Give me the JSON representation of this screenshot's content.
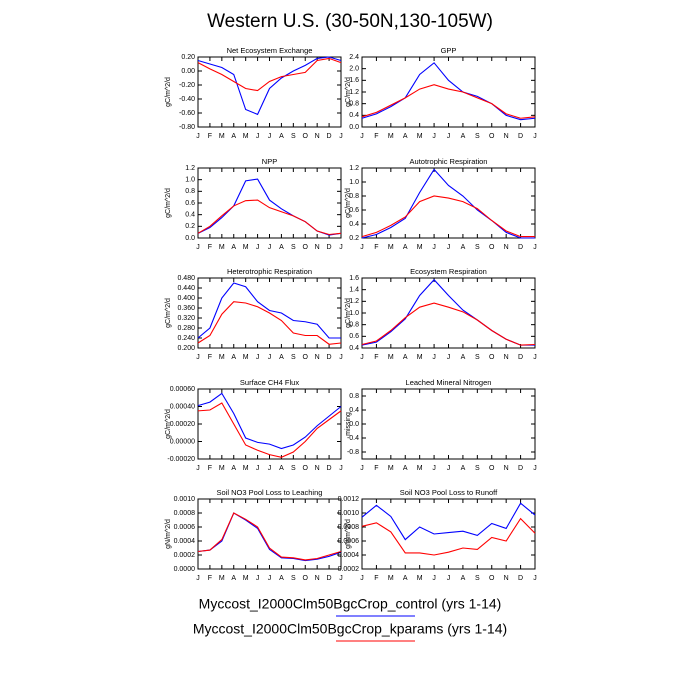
{
  "title": "Western U.S. (30-50N,130-105W)",
  "chart_data": [
    {
      "type": "line",
      "title": "Net Ecosystem Exchange",
      "ylabel": "gC/m^2/d",
      "categories": [
        "J",
        "F",
        "M",
        "A",
        "M",
        "J",
        "J",
        "A",
        "S",
        "O",
        "N",
        "D",
        "J"
      ],
      "ylim": [
        -0.8,
        0.2
      ],
      "yticks": [
        {
          "value": -0.8,
          "label": "-0.80"
        },
        {
          "value": -0.6,
          "label": "-0.60"
        },
        {
          "value": -0.4,
          "label": "-0.40"
        },
        {
          "value": -0.2,
          "label": "-0.20"
        },
        {
          "value": 0,
          "label": "0.00"
        },
        {
          "value": 0.2,
          "label": "0.20"
        }
      ],
      "series": [
        {
          "name": "Myccost_I2000Clm50BgcCrop_control (yrs 1-14)",
          "color": "#0000ff",
          "values": [
            0.15,
            0.1,
            0.05,
            -0.05,
            -0.55,
            -0.62,
            -0.25,
            -0.1,
            0.0,
            0.08,
            0.18,
            0.2,
            0.15
          ]
        },
        {
          "name": "Myccost_I2000Clm50BgcCrop_kparams (yrs 1-14)",
          "color": "#ff0000",
          "values": [
            0.12,
            0.03,
            -0.05,
            -0.15,
            -0.25,
            -0.28,
            -0.15,
            -0.08,
            -0.05,
            -0.02,
            0.15,
            0.18,
            0.12
          ]
        }
      ]
    },
    {
      "type": "line",
      "title": "GPP",
      "ylabel": "gC/m^2/d",
      "categories": [
        "J",
        "F",
        "M",
        "A",
        "M",
        "J",
        "J",
        "A",
        "S",
        "O",
        "N",
        "D",
        "J"
      ],
      "ylim": [
        0,
        2.4
      ],
      "yticks": [
        {
          "value": 0,
          "label": "0.0"
        },
        0.4,
        0.8,
        1.2,
        1.6,
        {
          "value": 2,
          "label": "2.0"
        },
        2.4
      ],
      "series": [
        {
          "name": "Myccost_I2000Clm50BgcCrop_control (yrs 1-14)",
          "color": "#0000ff",
          "values": [
            0.3,
            0.45,
            0.7,
            1.0,
            1.8,
            2.2,
            1.6,
            1.2,
            1.05,
            0.8,
            0.4,
            0.25,
            0.3
          ]
        },
        {
          "name": "Myccost_I2000Clm50BgcCrop_kparams (yrs 1-14)",
          "color": "#ff0000",
          "values": [
            0.35,
            0.5,
            0.75,
            1.0,
            1.3,
            1.45,
            1.3,
            1.2,
            1.0,
            0.8,
            0.45,
            0.3,
            0.35
          ]
        }
      ]
    },
    {
      "type": "line",
      "title": "NPP",
      "ylabel": "gC/m^2/d",
      "categories": [
        "J",
        "F",
        "M",
        "A",
        "M",
        "J",
        "J",
        "A",
        "S",
        "O",
        "N",
        "D",
        "J"
      ],
      "ylim": [
        0,
        1.2
      ],
      "yticks": [
        {
          "value": 0,
          "label": "0.0"
        },
        0.2,
        0.4,
        0.6,
        0.8,
        {
          "value": 1,
          "label": "1.0"
        },
        1.2
      ],
      "series": [
        {
          "name": "Myccost_I2000Clm50BgcCrop_control (yrs 1-14)",
          "color": "#0000ff",
          "values": [
            0.08,
            0.18,
            0.35,
            0.55,
            0.98,
            1.01,
            0.65,
            0.5,
            0.38,
            0.28,
            0.12,
            0.05,
            0.08
          ]
        },
        {
          "name": "Myccost_I2000Clm50BgcCrop_kparams (yrs 1-14)",
          "color": "#ff0000",
          "values": [
            0.08,
            0.2,
            0.38,
            0.55,
            0.64,
            0.65,
            0.52,
            0.45,
            0.38,
            0.28,
            0.12,
            0.06,
            0.08
          ]
        }
      ]
    },
    {
      "type": "line",
      "title": "Autotrophic Respiration",
      "ylabel": "gC/m^2/d",
      "categories": [
        "J",
        "F",
        "M",
        "A",
        "M",
        "J",
        "J",
        "A",
        "S",
        "O",
        "N",
        "D",
        "J"
      ],
      "ylim": [
        0.2,
        1.2
      ],
      "yticks": [
        0.2,
        0.4,
        0.6,
        0.8,
        {
          "value": 1,
          "label": "1.0"
        },
        1.2
      ],
      "series": [
        {
          "name": "Myccost_I2000Clm50BgcCrop_control (yrs 1-14)",
          "color": "#0000ff",
          "values": [
            0.2,
            0.25,
            0.35,
            0.48,
            0.85,
            1.18,
            0.95,
            0.8,
            0.6,
            0.45,
            0.28,
            0.2,
            0.2
          ]
        },
        {
          "name": "Myccost_I2000Clm50BgcCrop_kparams (yrs 1-14)",
          "color": "#ff0000",
          "values": [
            0.22,
            0.28,
            0.38,
            0.5,
            0.72,
            0.8,
            0.77,
            0.72,
            0.62,
            0.45,
            0.3,
            0.22,
            0.22
          ]
        }
      ]
    },
    {
      "type": "line",
      "title": "Heterotrophic Respiration",
      "ylabel": "gC/m^2/d",
      "categories": [
        "J",
        "F",
        "M",
        "A",
        "M",
        "J",
        "J",
        "A",
        "S",
        "O",
        "N",
        "D",
        "J"
      ],
      "ylim": [
        0.2,
        0.48
      ],
      "yticks": [
        {
          "value": 0.2,
          "label": "0.200"
        },
        {
          "value": 0.24,
          "label": "0.240"
        },
        {
          "value": 0.28,
          "label": "0.280"
        },
        {
          "value": 0.32,
          "label": "0.320"
        },
        {
          "value": 0.36,
          "label": "0.360"
        },
        {
          "value": 0.4,
          "label": "0.400"
        },
        {
          "value": 0.44,
          "label": "0.440"
        },
        {
          "value": 0.48,
          "label": "0.480"
        }
      ],
      "series": [
        {
          "name": "Myccost_I2000Clm50BgcCrop_control (yrs 1-14)",
          "color": "#0000ff",
          "values": [
            0.24,
            0.28,
            0.4,
            0.46,
            0.445,
            0.385,
            0.35,
            0.34,
            0.31,
            0.305,
            0.295,
            0.24,
            0.24
          ]
        },
        {
          "name": "Myccost_I2000Clm50BgcCrop_kparams (yrs 1-14)",
          "color": "#ff0000",
          "values": [
            0.22,
            0.25,
            0.335,
            0.385,
            0.38,
            0.365,
            0.34,
            0.31,
            0.26,
            0.25,
            0.25,
            0.215,
            0.22
          ]
        }
      ]
    },
    {
      "type": "line",
      "title": "Ecosystem Respiration",
      "ylabel": "gC/m^2/d",
      "categories": [
        "J",
        "F",
        "M",
        "A",
        "M",
        "J",
        "J",
        "A",
        "S",
        "O",
        "N",
        "D",
        "J"
      ],
      "ylim": [
        0.4,
        1.6
      ],
      "yticks": [
        0.4,
        0.6,
        0.8,
        {
          "value": 1,
          "label": "1.0"
        },
        1.2,
        1.4,
        1.6
      ],
      "series": [
        {
          "name": "Myccost_I2000Clm50BgcCrop_control (yrs 1-14)",
          "color": "#0000ff",
          "values": [
            0.45,
            0.5,
            0.68,
            0.9,
            1.3,
            1.57,
            1.3,
            1.05,
            0.88,
            0.7,
            0.55,
            0.45,
            0.45
          ]
        },
        {
          "name": "Myccost_I2000Clm50BgcCrop_kparams (yrs 1-14)",
          "color": "#ff0000",
          "values": [
            0.46,
            0.52,
            0.7,
            0.92,
            1.1,
            1.17,
            1.1,
            1.02,
            0.88,
            0.7,
            0.55,
            0.45,
            0.46
          ]
        }
      ]
    },
    {
      "type": "line",
      "title": "Surface CH4 Flux",
      "ylabel": "gC/m^2/d",
      "categories": [
        "J",
        "F",
        "M",
        "A",
        "M",
        "J",
        "J",
        "A",
        "S",
        "O",
        "N",
        "D",
        "J"
      ],
      "ylim": [
        -0.0002,
        0.0006
      ],
      "yticks": [
        {
          "value": -0.0002,
          "label": "-0.00020"
        },
        {
          "value": 0,
          "label": "0.00000"
        },
        {
          "value": 0.0002,
          "label": "0.00020"
        },
        {
          "value": 0.0004,
          "label": "0.00040"
        },
        {
          "value": 0.0006,
          "label": "0.00060"
        }
      ],
      "series": [
        {
          "name": "Myccost_I2000Clm50BgcCrop_control (yrs 1-14)",
          "color": "#0000ff",
          "values": [
            0.00041,
            0.00045,
            0.00055,
            0.00032,
            4e-05,
            -1e-05,
            -3e-05,
            -8e-05,
            -4e-05,
            5e-05,
            0.00018,
            0.00029,
            0.0004
          ]
        },
        {
          "name": "Myccost_I2000Clm50BgcCrop_kparams (yrs 1-14)",
          "color": "#ff0000",
          "values": [
            0.00035,
            0.00036,
            0.00044,
            0.0002,
            -4e-05,
            -0.0001,
            -0.00015,
            -0.00018,
            -0.00012,
            0.0,
            0.00015,
            0.00025,
            0.00035
          ]
        }
      ]
    },
    {
      "type": "line",
      "title": "Leached Mineral Nitrogen",
      "ylabel": "missing",
      "categories": [
        "J",
        "F",
        "M",
        "A",
        "M",
        "J",
        "J",
        "A",
        "S",
        "O",
        "N",
        "D",
        "J"
      ],
      "ylim": [
        -1,
        1
      ],
      "yticks": [
        -0.8,
        -0.4,
        {
          "value": 0,
          "label": "0.0"
        },
        0.4,
        0.8
      ]
    },
    {
      "type": "line",
      "title": "Soil NO3 Pool Loss to Leaching",
      "ylabel": "gN/m^2/d",
      "categories": [
        "J",
        "F",
        "M",
        "A",
        "M",
        "J",
        "J",
        "A",
        "S",
        "O",
        "N",
        "D",
        "J"
      ],
      "ylim": [
        0,
        0.001
      ],
      "yticks": [
        {
          "value": 0,
          "label": "0.0000"
        },
        {
          "value": 0.0002,
          "label": "0.0002"
        },
        {
          "value": 0.0004,
          "label": "0.0004"
        },
        {
          "value": 0.0006,
          "label": "0.0006"
        },
        {
          "value": 0.0008,
          "label": "0.0008"
        },
        {
          "value": 0.001,
          "label": "0.0010"
        }
      ],
      "series": [
        {
          "name": "Myccost_I2000Clm50BgcCrop_control (yrs 1-14)",
          "color": "#0000ff",
          "values": [
            0.00025,
            0.00027,
            0.0004,
            0.0008,
            0.0007,
            0.00058,
            0.00028,
            0.00016,
            0.00015,
            0.00012,
            0.00014,
            0.00018,
            0.00024
          ]
        },
        {
          "name": "Myccost_I2000Clm50BgcCrop_kparams (yrs 1-14)",
          "color": "#ff0000",
          "values": [
            0.00025,
            0.00027,
            0.00042,
            0.0008,
            0.00071,
            0.0006,
            0.0003,
            0.00017,
            0.00016,
            0.00013,
            0.00015,
            0.0002,
            0.00025
          ]
        }
      ]
    },
    {
      "type": "line",
      "title": "Soil NO3 Pool Loss to Runoff",
      "ylabel": "gN/m^2/d",
      "categories": [
        "J",
        "F",
        "M",
        "A",
        "M",
        "J",
        "J",
        "A",
        "S",
        "O",
        "N",
        "D",
        "J"
      ],
      "ylim": [
        0.0002,
        0.0012
      ],
      "yticks": [
        {
          "value": 0.0002,
          "label": "0.0002"
        },
        {
          "value": 0.0004,
          "label": "0.0004"
        },
        {
          "value": 0.0006,
          "label": "0.0006"
        },
        {
          "value": 0.0008,
          "label": "0.0008"
        },
        {
          "value": 0.001,
          "label": "0.0010"
        },
        {
          "value": 0.0012,
          "label": "0.0012"
        }
      ],
      "series": [
        {
          "name": "Myccost_I2000Clm50BgcCrop_control (yrs 1-14)",
          "color": "#0000ff",
          "values": [
            0.00094,
            0.00111,
            0.00095,
            0.00062,
            0.0008,
            0.0007,
            0.00072,
            0.00074,
            0.00068,
            0.00085,
            0.00078,
            0.00114,
            0.00097
          ]
        },
        {
          "name": "Myccost_I2000Clm50BgcCrop_kparams (yrs 1-14)",
          "color": "#ff0000",
          "values": [
            0.00081,
            0.00086,
            0.00073,
            0.00043,
            0.00043,
            0.0004,
            0.00044,
            0.0005,
            0.00048,
            0.00065,
            0.0006,
            0.00092,
            0.00071
          ]
        }
      ]
    }
  ]
}
